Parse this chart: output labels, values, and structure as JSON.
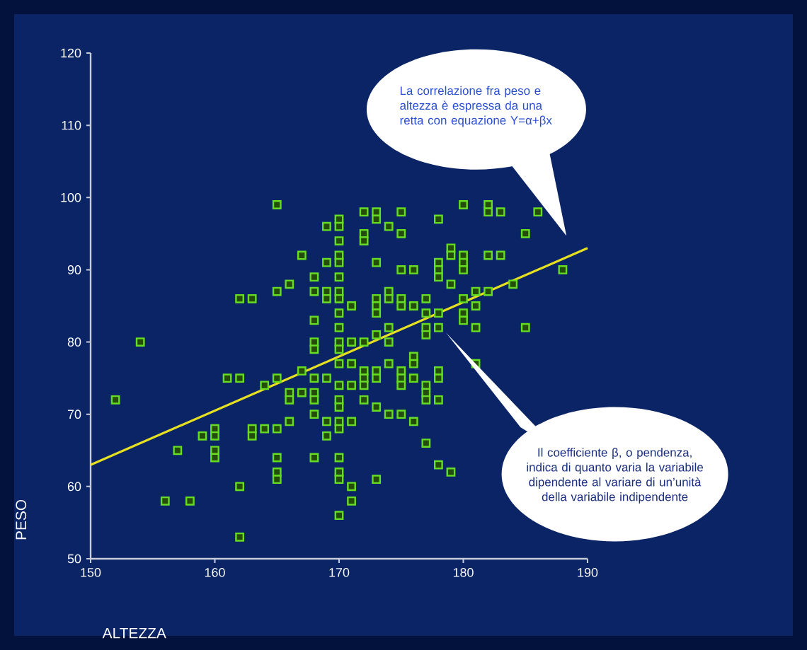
{
  "chart_data": {
    "type": "scatter",
    "xlabel": "ALTEZZA",
    "ylabel": "PESO",
    "xlim": [
      150,
      190
    ],
    "ylim": [
      50,
      120
    ],
    "xticks": [
      150,
      160,
      170,
      180,
      190
    ],
    "yticks": [
      50,
      60,
      70,
      80,
      90,
      100,
      110,
      120
    ],
    "annotations": [
      "La correlazione fra peso e altezza è espressa da una retta con equazione Y=α+βx",
      "Il coefficiente β, o pendenza, indica di quanto varia la variabile dipendente al variare di un’unità della variabile indipendente"
    ],
    "series": [
      {
        "color": "#66dd22",
        "marker": "square",
        "x": [
          152,
          154,
          156,
          157,
          158,
          159,
          160,
          160,
          160,
          160,
          161,
          162,
          162,
          162,
          162,
          163,
          163,
          163,
          164,
          164,
          165,
          165,
          165,
          165,
          165,
          165,
          165,
          166,
          166,
          166,
          166,
          167,
          167,
          167,
          168,
          168,
          168,
          168,
          168,
          168,
          168,
          168,
          168,
          168,
          169,
          169,
          169,
          169,
          169,
          169,
          169,
          170,
          170,
          170,
          170,
          170,
          170,
          170,
          170,
          170,
          170,
          170,
          170,
          170,
          170,
          170,
          170,
          170,
          170,
          170,
          170,
          170,
          170,
          171,
          171,
          171,
          171,
          171,
          171,
          171,
          172,
          172,
          172,
          172,
          172,
          172,
          172,
          172,
          173,
          173,
          173,
          173,
          173,
          173,
          173,
          173,
          173,
          173,
          173,
          174,
          174,
          174,
          174,
          174,
          174,
          174,
          175,
          175,
          175,
          175,
          175,
          175,
          175,
          175,
          175,
          176,
          176,
          176,
          176,
          176,
          176,
          177,
          177,
          177,
          177,
          177,
          177,
          177,
          177,
          178,
          178,
          178,
          178,
          178,
          178,
          178,
          178,
          178,
          178,
          179,
          179,
          179,
          179,
          180,
          180,
          180,
          180,
          180,
          180,
          180,
          181,
          181,
          181,
          181,
          182,
          182,
          182,
          182,
          183,
          183,
          184,
          185,
          185,
          186,
          188
        ],
        "values": [
          72,
          80,
          58,
          65,
          58,
          67,
          68,
          67,
          65,
          64,
          75,
          86,
          75,
          60,
          53,
          86,
          68,
          67,
          74,
          68,
          99,
          87,
          75,
          68,
          64,
          62,
          61,
          88,
          73,
          72,
          69,
          92,
          76,
          73,
          89,
          87,
          83,
          80,
          79,
          75,
          73,
          72,
          70,
          64,
          96,
          91,
          87,
          86,
          75,
          69,
          67,
          97,
          96,
          94,
          92,
          91,
          89,
          87,
          86,
          84,
          82,
          80,
          79,
          77,
          74,
          72,
          71,
          69,
          68,
          64,
          62,
          61,
          56,
          85,
          80,
          77,
          74,
          69,
          60,
          58,
          98,
          95,
          94,
          80,
          76,
          75,
          74,
          72,
          98,
          97,
          91,
          86,
          85,
          84,
          81,
          76,
          75,
          71,
          61,
          96,
          87,
          86,
          82,
          80,
          77,
          70,
          98,
          95,
          90,
          86,
          85,
          76,
          75,
          74,
          70,
          90,
          85,
          78,
          77,
          75,
          69,
          86,
          84,
          82,
          81,
          74,
          73,
          72,
          66,
          97,
          91,
          90,
          89,
          84,
          82,
          76,
          75,
          72,
          63,
          93,
          92,
          88,
          62,
          99,
          92,
          91,
          90,
          86,
          84,
          83,
          87,
          85,
          82,
          77,
          99,
          98,
          92,
          87,
          98,
          92,
          88,
          95,
          82,
          98,
          90
        ]
      },
      {
        "type": "line",
        "color": "#e6e020",
        "x": [
          150,
          190
        ],
        "values": [
          63,
          93
        ]
      }
    ]
  }
}
